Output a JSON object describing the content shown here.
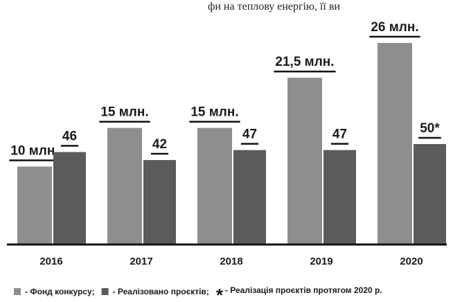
{
  "fragment": "фи на теплову енергію, її ви",
  "chart_data": {
    "type": "bar",
    "categories": [
      "2016",
      "2017",
      "2018",
      "2019",
      "2020"
    ],
    "series": [
      {
        "name": "- Фонд конкурсу;",
        "color": "#8e8e8e",
        "values": [
          10,
          15,
          15,
          21.5,
          26
        ],
        "value_labels": [
          "10 млн.",
          "15 млн.",
          "15 млн.",
          "21,5 млн.",
          "26 млн."
        ]
      },
      {
        "name": "- Реалізовано проєктів;",
        "color": "#5b5b5b",
        "axis": "y2",
        "values": [
          46,
          42,
          47,
          47,
          50
        ],
        "value_labels": [
          "46",
          "42",
          "47",
          "47",
          "50*"
        ]
      }
    ],
    "footnote": {
      "symbol": "*",
      "text": "- Реалізація проєктів протягом 2020 р."
    }
  }
}
